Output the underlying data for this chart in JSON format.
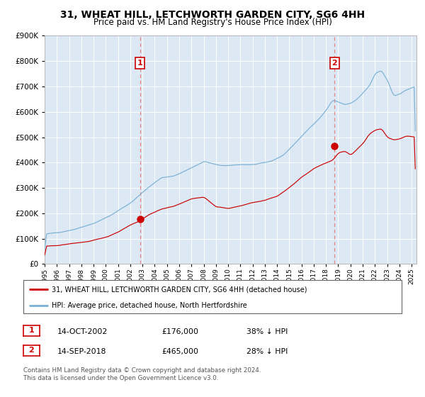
{
  "title": "31, WHEAT HILL, LETCHWORTH GARDEN CITY, SG6 4HH",
  "subtitle": "Price paid vs. HM Land Registry's House Price Index (HPI)",
  "title_fontsize": 10,
  "subtitle_fontsize": 8.5,
  "plot_bg_color": "#dce9f5",
  "ytick_values": [
    0,
    100000,
    200000,
    300000,
    400000,
    500000,
    600000,
    700000,
    800000,
    900000
  ],
  "ylim": [
    0,
    900000
  ],
  "xlim_start": 1995.0,
  "xlim_end": 2025.4,
  "marker1_x": 2002.79,
  "marker1_y": 176000,
  "marker2_x": 2018.71,
  "marker2_y": 465000,
  "legend_line1": "31, WHEAT HILL, LETCHWORTH GARDEN CITY, SG6 4HH (detached house)",
  "legend_line2": "HPI: Average price, detached house, North Hertfordshire",
  "footnote1": "Contains HM Land Registry data © Crown copyright and database right 2024.",
  "footnote2": "This data is licensed under the Open Government Licence v3.0.",
  "red_line_color": "#cc0000",
  "blue_line_color": "#7ab0d4",
  "vline_color": "#e88080",
  "xtick_years": [
    1995,
    1996,
    1997,
    1998,
    1999,
    2000,
    2001,
    2002,
    2003,
    2004,
    2005,
    2006,
    2007,
    2008,
    2009,
    2010,
    2011,
    2012,
    2013,
    2014,
    2015,
    2016,
    2017,
    2018,
    2019,
    2020,
    2021,
    2022,
    2023,
    2024,
    2025
  ],
  "table_entries": [
    {
      "num": "1",
      "date": "14-OCT-2002",
      "price": "£176,000",
      "pct": "38% ↓ HPI"
    },
    {
      "num": "2",
      "date": "14-SEP-2018",
      "price": "£465,000",
      "pct": "28% ↓ HPI"
    }
  ]
}
